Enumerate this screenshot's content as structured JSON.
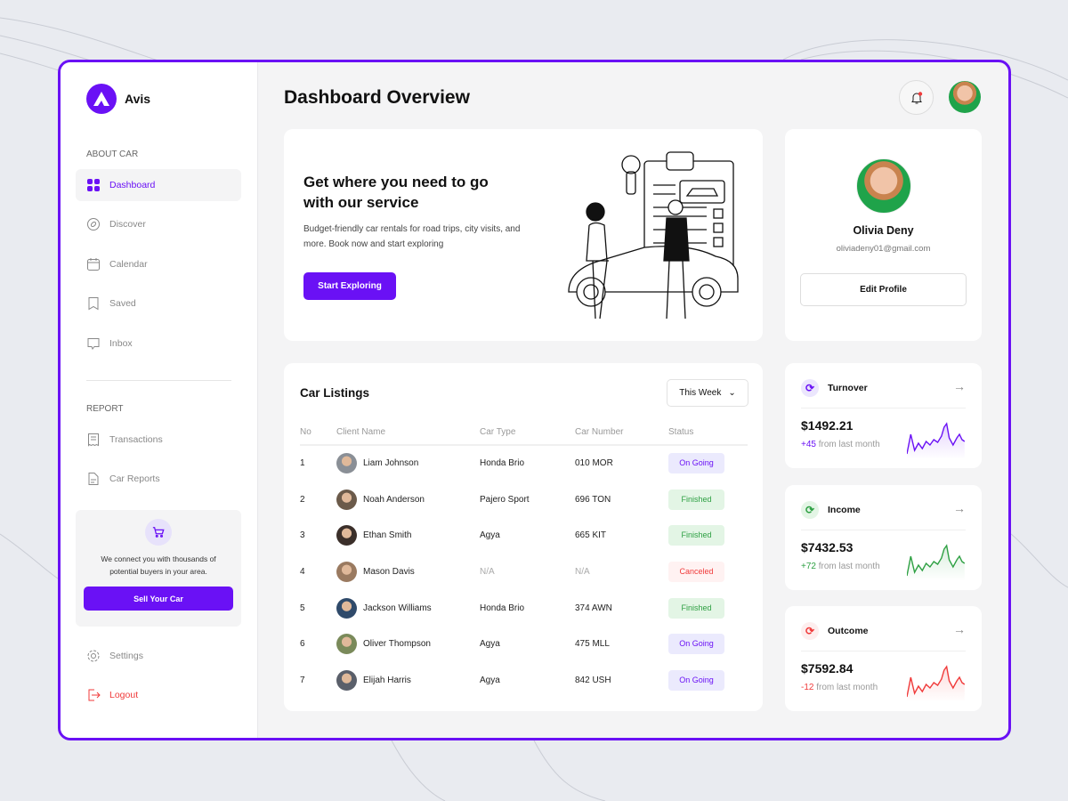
{
  "brand": {
    "name": "Avis"
  },
  "sidebar": {
    "section_about": "ABOUT CAR",
    "section_report": "REPORT",
    "items": [
      {
        "label": "Dashboard",
        "icon": "grid-icon"
      },
      {
        "label": "Discover",
        "icon": "compass-icon"
      },
      {
        "label": "Calendar",
        "icon": "calendar-icon"
      },
      {
        "label": "Saved",
        "icon": "bookmark-icon"
      },
      {
        "label": "Inbox",
        "icon": "chat-icon"
      }
    ],
    "report_items": [
      {
        "label": "Transactions",
        "icon": "receipt-icon"
      },
      {
        "label": "Car Reports",
        "icon": "document-icon"
      }
    ],
    "promo": {
      "text": "We connect you with thousands of potential buyers in your area.",
      "button": "Sell Your Car"
    },
    "settings": "Settings",
    "logout": "Logout"
  },
  "header": {
    "title": "Dashboard Overview"
  },
  "hero": {
    "title": "Get where you need to go with our service",
    "text": "Budget-friendly car rentals for road trips, city visits, and more. Book now and start exploring",
    "button": "Start Exploring"
  },
  "profile": {
    "name": "Olivia Deny",
    "email": "oliviadeny01@gmail.com",
    "button": "Edit Profile"
  },
  "listings": {
    "title": "Car Listings",
    "filter": "This Week",
    "columns": [
      "No",
      "Client Name",
      "Car Type",
      "Car Number",
      "Status"
    ],
    "rows": [
      {
        "no": "1",
        "name": "Liam Johnson",
        "type": "Honda Brio",
        "number": "010 MOR",
        "status": "On Going"
      },
      {
        "no": "2",
        "name": "Noah Anderson",
        "type": "Pajero Sport",
        "number": "696 TON",
        "status": "Finished"
      },
      {
        "no": "3",
        "name": "Ethan Smith",
        "type": "Agya",
        "number": "665 KIT",
        "status": "Finished"
      },
      {
        "no": "4",
        "name": "Mason Davis",
        "type": "N/A",
        "number": "N/A",
        "status": "Canceled"
      },
      {
        "no": "5",
        "name": "Jackson Williams",
        "type": "Honda Brio",
        "number": "374 AWN",
        "status": "Finished"
      },
      {
        "no": "6",
        "name": "Oliver Thompson",
        "type": "Agya",
        "number": "475 MLL",
        "status": "On Going"
      },
      {
        "no": "7",
        "name": "Elijah Harris",
        "type": "Agya",
        "number": "842 USH",
        "status": "On Going"
      }
    ]
  },
  "stats": [
    {
      "title": "Turnover",
      "value": "$1492.21",
      "change": "+45",
      "suffix": "from last month",
      "color": "#6a11f5",
      "bg": "#ebe6fd"
    },
    {
      "title": "Income",
      "value": "$7432.53",
      "change": "+72",
      "suffix": "from last month",
      "color": "#2ea043",
      "bg": "#e3f5e5"
    },
    {
      "title": "Outcome",
      "value": "$7592.84",
      "change": "-12",
      "suffix": "from last month",
      "color": "#f03a3a",
      "bg": "#fdeeee"
    }
  ],
  "colors": {
    "accent": "#6a11f5",
    "finished": "#2ea043",
    "canceled": "#f03a3a"
  }
}
